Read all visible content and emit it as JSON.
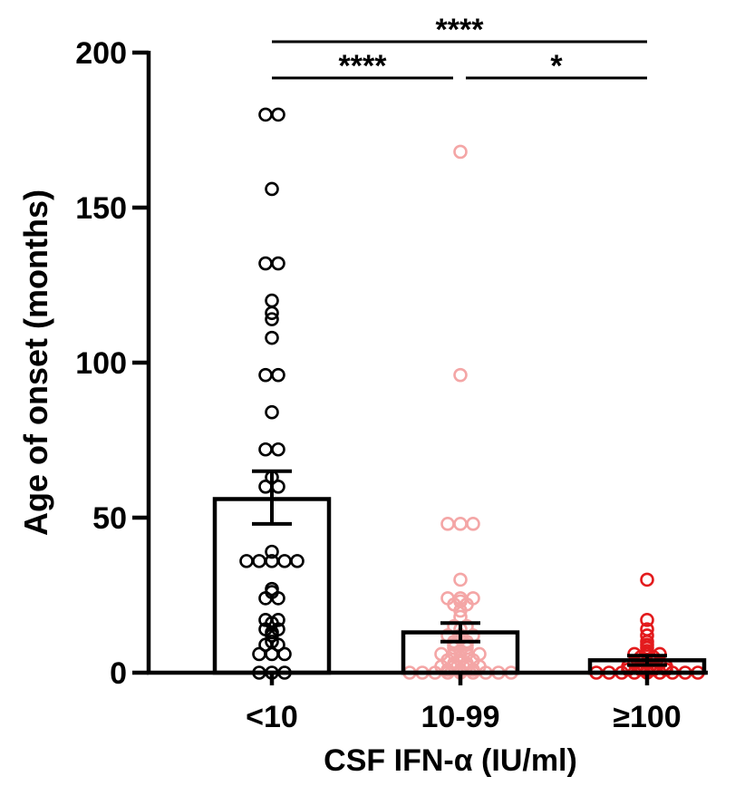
{
  "chart_data": {
    "type": "bar",
    "xlabel": "CSF IFN-α (IU/ml)",
    "ylabel": "Age of onset (months)",
    "ylim": [
      0,
      200
    ],
    "yticks": [
      0,
      50,
      100,
      150,
      200
    ],
    "grid": false,
    "categories": [
      "<10",
      "10-99",
      "≥100"
    ],
    "colors": [
      "#000000",
      "#f4a6a6",
      "#e31a1c"
    ],
    "values": [
      56,
      13,
      4
    ],
    "error_bars": [
      {
        "low": 48,
        "high": 65
      },
      {
        "low": 10,
        "high": 16
      },
      {
        "low": 2.5,
        "high": 5.5
      }
    ],
    "points": [
      [
        180,
        180,
        156,
        132,
        132,
        120,
        116,
        114,
        108,
        96,
        96,
        84,
        72,
        72,
        63,
        60,
        60,
        39,
        36,
        36,
        36,
        36,
        36,
        27,
        26,
        24,
        24,
        17,
        17,
        16,
        14,
        14,
        13,
        12,
        10,
        9,
        9,
        6,
        6,
        6,
        0,
        0,
        0
      ],
      [
        168,
        96,
        48,
        48,
        48,
        30,
        24,
        24,
        24,
        23,
        22,
        22,
        20,
        18,
        15,
        15,
        14,
        12,
        12,
        12,
        11,
        10,
        10,
        9,
        9,
        8,
        8,
        7,
        6,
        6,
        6,
        6,
        5,
        4,
        4,
        4,
        3,
        3,
        2,
        2,
        2,
        2,
        0,
        0,
        0,
        0,
        0,
        0,
        0,
        0,
        0,
        0,
        0,
        0
      ],
      [
        30,
        17,
        14,
        12,
        10,
        9,
        8,
        7,
        6,
        6,
        6,
        5,
        5,
        4,
        4,
        3,
        3,
        3,
        2,
        2,
        2,
        2,
        1,
        1,
        1,
        1,
        0,
        0,
        0,
        0,
        0,
        0,
        0,
        0,
        0,
        0
      ]
    ],
    "significance": [
      {
        "from": 0,
        "to": 2,
        "label": "****",
        "level": 2
      },
      {
        "from": 0,
        "to": 1,
        "label": "****",
        "level": 1
      },
      {
        "from": 1,
        "to": 2,
        "label": "*",
        "level": 1
      }
    ]
  }
}
